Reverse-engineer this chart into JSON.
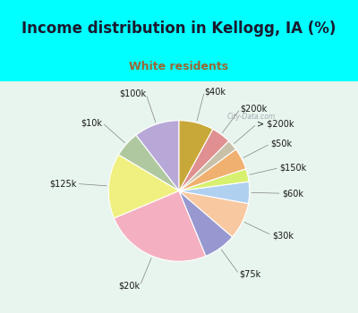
{
  "title": "Income distribution in Kellogg, IA (%)",
  "subtitle": "White residents",
  "title_color": "#1a1a2e",
  "subtitle_color": "#996633",
  "background_top": "#00ffff",
  "background_chart_color": "#e8f5ee",
  "labels": [
    "$100k",
    "$10k",
    "$125k",
    "$20k",
    "$75k",
    "$30k",
    "$60k",
    "$150k",
    "$50k",
    "> $200k",
    "$200k",
    "$40k"
  ],
  "values": [
    10.5,
    6.0,
    15.0,
    25.0,
    7.5,
    8.5,
    5.0,
    3.0,
    5.0,
    2.5,
    4.5,
    8.0
  ],
  "colors": [
    "#b8a8d8",
    "#b0c8a0",
    "#f0f080",
    "#f4b0c0",
    "#9898d0",
    "#f8c8a0",
    "#b0d0f0",
    "#d8f070",
    "#f0b070",
    "#c8c0a8",
    "#e09090",
    "#c8a838"
  ],
  "startangle": 90,
  "label_fontsize": 7.0,
  "title_fontsize": 12,
  "subtitle_fontsize": 9
}
